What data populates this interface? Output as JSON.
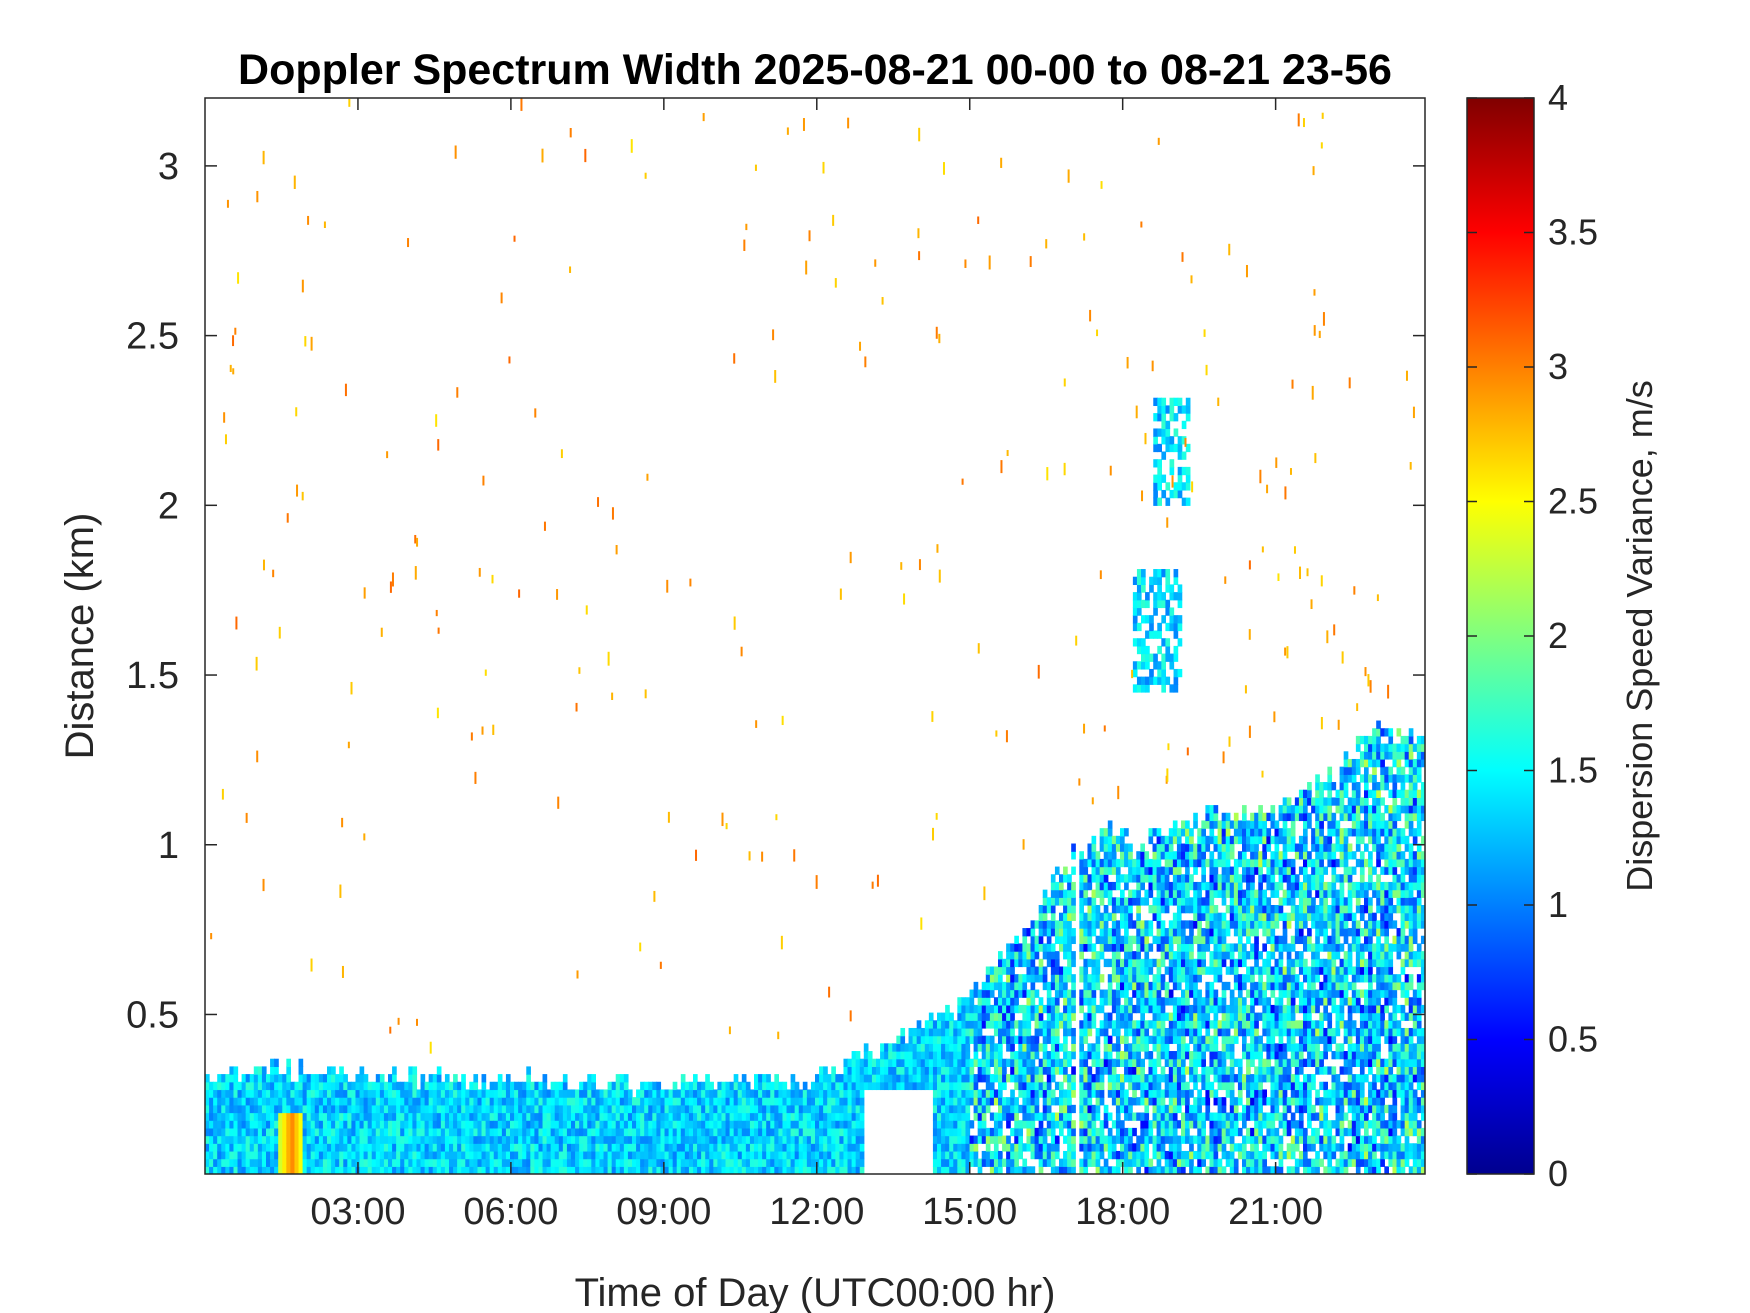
{
  "chart_data": {
    "type": "heatmap",
    "title": "Doppler Spectrum Width 2025-08-21 00-00 to 08-21 23-56",
    "xlabel": "Time of Day (UTC00:00 hr)",
    "ylabel": "Distance (km)",
    "colorbar_label": "Dispersion Speed Variance, m/s",
    "colormap": "jet",
    "x_range_hours": [
      0,
      23.93
    ],
    "ylim": [
      0.03,
      3.2
    ],
    "clim": [
      0,
      4
    ],
    "x_ticks": [
      {
        "value": 3,
        "label": "03:00"
      },
      {
        "value": 6,
        "label": "06:00"
      },
      {
        "value": 9,
        "label": "09:00"
      },
      {
        "value": 12,
        "label": "12:00"
      },
      {
        "value": 15,
        "label": "15:00"
      },
      {
        "value": 18,
        "label": "18:00"
      },
      {
        "value": 21,
        "label": "21:00"
      }
    ],
    "y_ticks": [
      {
        "value": 0.5,
        "label": "0.5"
      },
      {
        "value": 1,
        "label": "1"
      },
      {
        "value": 1.5,
        "label": "1.5"
      },
      {
        "value": 2,
        "label": "2"
      },
      {
        "value": 2.5,
        "label": "2.5"
      },
      {
        "value": 3,
        "label": "3"
      }
    ],
    "colorbar_ticks": [
      {
        "value": 0,
        "label": "0"
      },
      {
        "value": 0.5,
        "label": "0.5"
      },
      {
        "value": 1,
        "label": "1"
      },
      {
        "value": 1.5,
        "label": "1.5"
      },
      {
        "value": 2,
        "label": "2"
      },
      {
        "value": 2.5,
        "label": "2.5"
      },
      {
        "value": 3,
        "label": "3"
      },
      {
        "value": 3.5,
        "label": "3.5"
      },
      {
        "value": 4,
        "label": "4"
      }
    ],
    "signal_top_km": [
      [
        0.0,
        0.32
      ],
      [
        1.0,
        0.33
      ],
      [
        2.0,
        0.34
      ],
      [
        3.0,
        0.33
      ],
      [
        4.0,
        0.32
      ],
      [
        5.0,
        0.31
      ],
      [
        6.0,
        0.31
      ],
      [
        7.0,
        0.3
      ],
      [
        8.0,
        0.3
      ],
      [
        9.0,
        0.29
      ],
      [
        10.0,
        0.3
      ],
      [
        11.0,
        0.31
      ],
      [
        12.0,
        0.3
      ],
      [
        13.0,
        0.39
      ],
      [
        14.0,
        0.45
      ],
      [
        15.0,
        0.55
      ],
      [
        16.0,
        0.75
      ],
      [
        17.0,
        0.98
      ],
      [
        17.8,
        1.05
      ],
      [
        18.3,
        1.0
      ],
      [
        19.0,
        1.05
      ],
      [
        20.0,
        1.1
      ],
      [
        21.0,
        1.1
      ],
      [
        22.0,
        1.2
      ],
      [
        23.0,
        1.35
      ],
      [
        23.93,
        1.33
      ]
    ],
    "signal_gaps": [
      {
        "x": [
          12.9,
          14.3
        ],
        "y": [
          0.03,
          0.28
        ]
      },
      {
        "x": [
          17.05,
          17.15
        ],
        "y": [
          0.03,
          1.2
        ]
      }
    ],
    "elevated_layers": [
      {
        "x": [
          18.2,
          19.1
        ],
        "y": [
          1.45,
          1.8
        ]
      },
      {
        "x": [
          18.6,
          19.3
        ],
        "y": [
          2.0,
          2.3
        ]
      }
    ],
    "typical_value_range": [
      1.0,
      1.7
    ],
    "surface_peak": {
      "x": 1.7,
      "value": 3.0
    }
  }
}
